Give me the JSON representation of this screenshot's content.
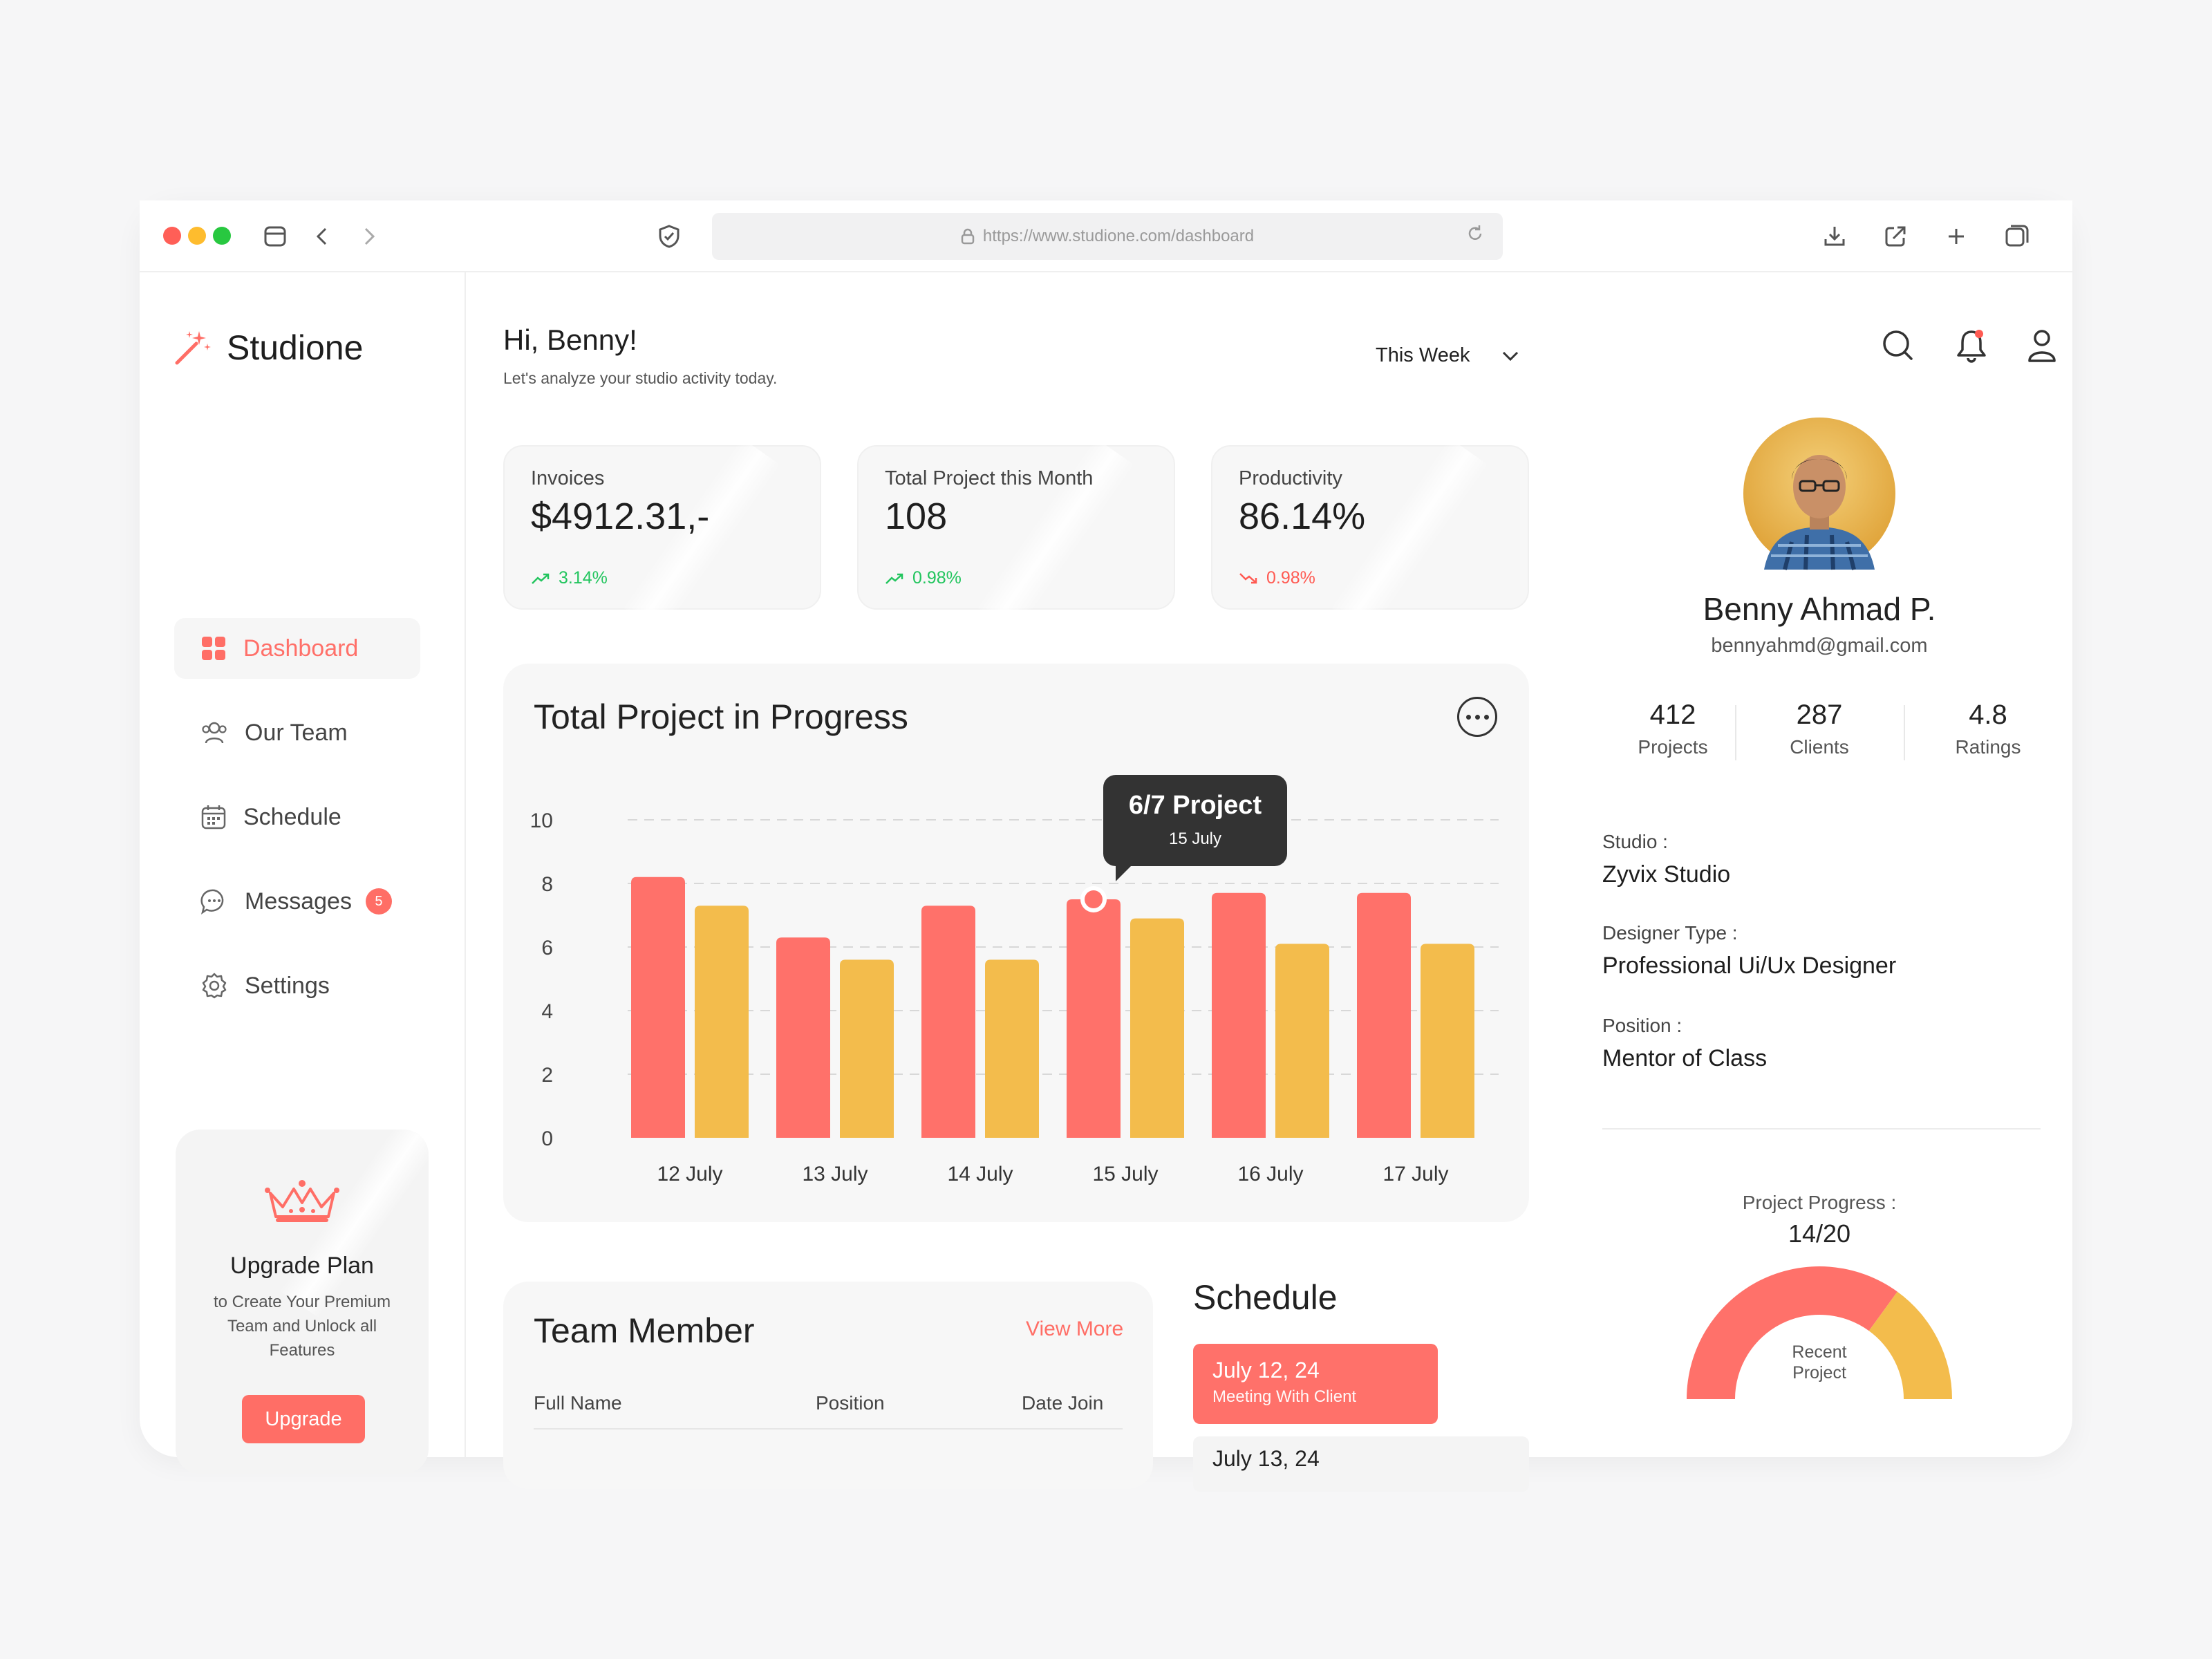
{
  "browser": {
    "url": "https://www.studione.com/dashboard"
  },
  "brand": {
    "name": "Studione"
  },
  "nav": {
    "items": [
      {
        "label": "Dashboard"
      },
      {
        "label": "Our Team"
      },
      {
        "label": "Schedule"
      },
      {
        "label": "Messages",
        "badge": "5"
      },
      {
        "label": "Settings"
      }
    ]
  },
  "upgrade": {
    "title": "Upgrade Plan",
    "desc": "to Create Your Premium Team and Unlock all Features",
    "button": "Upgrade"
  },
  "header": {
    "greeting": "Hi, Benny!",
    "subtitle": "Let's analyze your studio activity today.",
    "period": "This Week"
  },
  "cards": [
    {
      "label": "Invoices",
      "value": "$4912.31,-",
      "change": "3.14%",
      "trend": "up"
    },
    {
      "label": "Total Project this Month",
      "value": "108",
      "change": "0.98%",
      "trend": "up"
    },
    {
      "label": "Productivity",
      "value": "86.14%",
      "change": "0.98%",
      "trend": "down"
    }
  ],
  "colors": {
    "accent": "#ff716a",
    "secondary": "#f3bc4c",
    "up": "#22c55e",
    "down": "#ff5a52"
  },
  "chart_data": {
    "type": "bar",
    "title": "Total Project in Progress",
    "categories": [
      "12 July",
      "13 July",
      "14 July",
      "15 July",
      "16 July",
      "17 July"
    ],
    "series": [
      {
        "values": [
          8.2,
          6.3,
          7.3,
          7.5,
          7.7,
          7.7
        ],
        "color": "#ff716a"
      },
      {
        "values": [
          7.3,
          5.6,
          5.6,
          6.9,
          6.1,
          6.1
        ],
        "color": "#f3bc4c"
      }
    ],
    "yticks": [
      "0",
      "2",
      "4",
      "6",
      "8",
      "10"
    ],
    "ylim": [
      0,
      10
    ],
    "grid": true,
    "tooltip": {
      "title": "6/7 Project",
      "sub": "15 July",
      "category_index": 3
    }
  },
  "team": {
    "title": "Team Member",
    "view_more": "View More",
    "columns": [
      "Full Name",
      "Position",
      "Date Join"
    ]
  },
  "schedule": {
    "title": "Schedule",
    "items": [
      {
        "date": "July 12, 24",
        "desc": "Meeting With Client"
      },
      {
        "date": "July 13, 24"
      }
    ]
  },
  "profile": {
    "name": "Benny Ahmad P.",
    "email": "bennyahmd@gmail.com",
    "stats": [
      {
        "value": "412",
        "label": "Projects"
      },
      {
        "value": "287",
        "label": "Clients"
      },
      {
        "value": "4.8",
        "label": "Ratings"
      }
    ],
    "studio_label": "Studio :",
    "studio": "Zyvix Studio",
    "type_label": "Designer Type :",
    "type": "Professional Ui/Ux Designer",
    "position_label": "Position :",
    "position": "Mentor of Class",
    "progress_label": "Project Progress :",
    "progress": "14/20",
    "progress_fraction": 0.7,
    "gauge_label": "Recent Project"
  }
}
